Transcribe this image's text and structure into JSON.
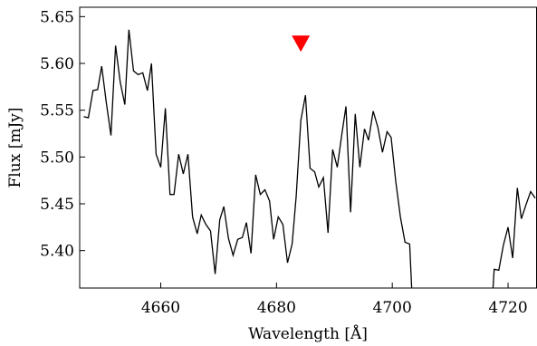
{
  "chart_data": {
    "type": "line",
    "xlabel": "Wavelength [Å]",
    "ylabel": "Flux [mJy]",
    "xlim": [
      4646,
      4725
    ],
    "ylim": [
      5.36,
      5.66
    ],
    "xticks": [
      4660,
      4680,
      4700,
      4720
    ],
    "yticks": [
      {
        "value": 5.4,
        "label": "5.40"
      },
      5.45,
      {
        "value": 5.5,
        "label": "5.50"
      },
      5.55,
      {
        "value": 5.6,
        "label": "5.60"
      },
      5.65
    ],
    "series": [
      {
        "color": "#000000",
        "x": [
          4646.7,
          4647.5,
          4648.3,
          4649.1,
          4649.8,
          4650.6,
          4651.4,
          4652.2,
          4653.0,
          4653.8,
          4654.5,
          4655.3,
          4656.1,
          4656.9,
          4657.7,
          4658.4,
          4659.2,
          4660.0,
          4660.8,
          4661.6,
          4662.3,
          4663.1,
          4663.9,
          4664.7,
          4665.5,
          4666.3,
          4667.0,
          4667.8,
          4668.6,
          4669.4,
          4670.2,
          4670.9,
          4671.7,
          4672.5,
          4673.3,
          4674.1,
          4674.8,
          4675.6,
          4676.4,
          4677.2,
          4678.0,
          4678.8,
          4679.5,
          4680.3,
          4681.1,
          4681.9,
          4682.7,
          4683.4,
          4684.2,
          4685.0,
          4685.8,
          4686.6,
          4687.3,
          4688.1,
          4688.9,
          4689.7,
          4690.5,
          4691.3,
          4692.0,
          4692.8,
          4693.6,
          4694.4,
          4695.2,
          4695.9,
          4696.7,
          4697.5,
          4698.3,
          4699.1,
          4699.8,
          4700.6,
          4701.4,
          4702.2,
          4703.0,
          4703.8,
          4716.8,
          4717.6,
          4718.4,
          4719.2,
          4720.0,
          4720.8,
          4721.6,
          4722.3,
          4723.1,
          4723.9,
          4724.7
        ],
        "values": [
          5.543,
          5.542,
          5.571,
          5.572,
          5.597,
          5.558,
          5.523,
          5.619,
          5.58,
          5.556,
          5.636,
          5.592,
          5.588,
          5.59,
          5.571,
          5.6,
          5.503,
          5.489,
          5.552,
          5.46,
          5.46,
          5.503,
          5.482,
          5.503,
          5.436,
          5.418,
          5.438,
          5.428,
          5.421,
          5.375,
          5.433,
          5.447,
          5.413,
          5.395,
          5.412,
          5.414,
          5.43,
          5.397,
          5.481,
          5.46,
          5.465,
          5.453,
          5.412,
          5.436,
          5.428,
          5.387,
          5.407,
          5.458,
          5.539,
          5.566,
          5.488,
          5.484,
          5.468,
          5.478,
          5.419,
          5.508,
          5.489,
          5.525,
          5.554,
          5.441,
          5.546,
          5.489,
          5.53,
          5.518,
          5.549,
          5.532,
          5.505,
          5.527,
          5.521,
          5.474,
          5.436,
          5.409,
          5.407,
          5.3,
          5.3,
          5.38,
          5.379,
          5.406,
          5.425,
          5.392,
          5.467,
          5.434,
          5.449,
          5.463,
          5.456
        ]
      }
    ],
    "marker": {
      "x": 4684.2,
      "y": 5.621,
      "color": "#ff0000"
    }
  }
}
